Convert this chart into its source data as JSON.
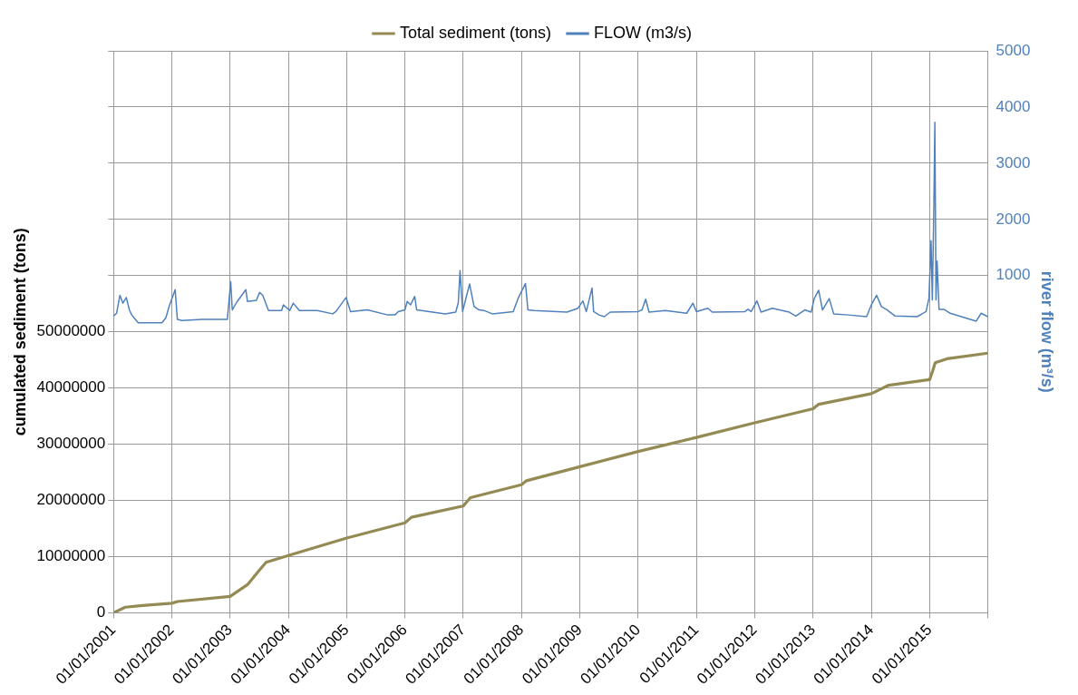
{
  "chart_data": {
    "type": "line",
    "ylabel": "cumulated sediment (tons)",
    "y2label": "river flow (m³/s)",
    "xlim": [
      "2001-01-01",
      "2016-01-01"
    ],
    "xticks": [
      {
        "value": "2001-01-01",
        "label": "01/01/2001"
      },
      {
        "value": "2002-01-01",
        "label": "01/01/2002"
      },
      {
        "value": "2003-01-01",
        "label": "01/01/2003"
      },
      {
        "value": "2004-01-01",
        "label": "01/01/2004"
      },
      {
        "value": "2005-01-01",
        "label": "01/01/2005"
      },
      {
        "value": "2006-01-01",
        "label": "01/01/2006"
      },
      {
        "value": "2007-01-01",
        "label": "01/01/2007"
      },
      {
        "value": "2008-01-01",
        "label": "01/01/2008"
      },
      {
        "value": "2009-01-01",
        "label": "01/01/2009"
      },
      {
        "value": "2010-01-01",
        "label": "01/01/2010"
      },
      {
        "value": "2011-01-01",
        "label": "01/01/2011"
      },
      {
        "value": "2012-01-01",
        "label": "01/01/2012"
      },
      {
        "value": "2013-01-01",
        "label": "01/01/2013"
      },
      {
        "value": "2014-01-01",
        "label": "01/01/2014"
      },
      {
        "value": "2015-01-01",
        "label": "01/01/2015"
      },
      {
        "value": "2016-01-01",
        "label": null
      }
    ],
    "ylim": [
      0,
      100000000
    ],
    "yticks": [
      0,
      10000000,
      20000000,
      30000000,
      40000000,
      50000000,
      {
        "value": 60000000,
        "label": null
      },
      {
        "value": 70000000,
        "label": null
      },
      {
        "value": 80000000,
        "label": null
      },
      {
        "value": 90000000,
        "label": null
      },
      {
        "value": 100000000,
        "label": null
      }
    ],
    "y2lim": [
      -5000,
      5000
    ],
    "y2ticks": [
      1000,
      2000,
      3000,
      4000,
      5000
    ],
    "grid": true,
    "legend": "top",
    "marker": "none",
    "series": [
      {
        "name": "Total sediment (tons)",
        "color": "#948a54",
        "x": [
          "2001-01-01",
          "2001-03-15",
          "2001-07-01",
          "2002-01-01",
          "2002-02-05",
          "2003-01-01",
          "2003-04-20",
          "2003-07-01",
          "2003-08-15",
          "2004-01-01",
          "2005-01-01",
          "2006-01-01",
          "2006-02-10",
          "2007-01-01",
          "2007-02-15",
          "2008-01-01",
          "2008-02-01",
          "2009-01-01",
          "2010-01-01",
          "2011-01-01",
          "2012-01-01",
          "2013-01-01",
          "2013-02-05",
          "2014-01-01",
          "2014-04-20",
          "2015-01-01",
          "2015-01-20",
          "2015-02-05",
          "2015-04-20",
          "2016-01-01"
        ],
        "values": [
          0,
          1000000,
          1300000,
          1700000,
          2000000,
          2900000,
          5000000,
          7500000,
          9000000,
          10200000,
          13300000,
          16000000,
          17000000,
          19000000,
          20500000,
          22800000,
          23500000,
          26000000,
          28700000,
          31200000,
          33800000,
          36300000,
          37100000,
          39000000,
          40500000,
          41500000,
          43000000,
          44500000,
          45200000,
          46200000
        ]
      },
      {
        "name": "FLOW (m3/s)",
        "color": "#4f81bd",
        "axis": "y2",
        "x": [
          "2001-01-01",
          "2001-01-20",
          "2001-02-10",
          "2001-02-28",
          "2001-03-22",
          "2001-04-10",
          "2001-04-25",
          "2001-05-15",
          "2001-06-05",
          "2001-10-31",
          "2001-11-25",
          "2001-12-15",
          "2002-01-22",
          "2002-02-05",
          "2002-03-05",
          "2002-07-12",
          "2002-12-15",
          "2003-01-05",
          "2003-01-15",
          "2003-02-10",
          "2003-04-10",
          "2003-04-20",
          "2003-06-15",
          "2003-07-05",
          "2003-07-25",
          "2003-08-30",
          "2003-11-20",
          "2003-12-01",
          "2004-01-10",
          "2004-02-01",
          "2004-03-10",
          "2004-07-01",
          "2004-10-05",
          "2004-10-25",
          "2004-12-28",
          "2005-01-25",
          "2005-05-10",
          "2005-09-15",
          "2005-10-30",
          "2005-11-20",
          "2006-01-01",
          "2006-01-15",
          "2006-02-05",
          "2006-03-03",
          "2006-03-15",
          "2006-04-15",
          "2006-09-10",
          "2006-11-15",
          "2006-12-01",
          "2006-12-12",
          "2006-12-28",
          "2007-01-20",
          "2007-02-10",
          "2007-03-10",
          "2007-04-10",
          "2007-05-10",
          "2007-07-02",
          "2007-11-10",
          "2007-12-10",
          "2008-01-26",
          "2008-02-10",
          "2008-03-20",
          "2008-10-12",
          "2008-12-20",
          "2009-01-20",
          "2009-02-10",
          "2009-03-18",
          "2009-03-28",
          "2009-05-01",
          "2009-06-03",
          "2009-07-10",
          "2010-01-01",
          "2010-01-25",
          "2010-02-17",
          "2010-03-10",
          "2010-06-20",
          "2010-11-01",
          "2010-12-10",
          "2011-01-01",
          "2011-03-14",
          "2011-04-10",
          "2011-11-01",
          "2011-11-20",
          "2011-12-10",
          "2012-01-15",
          "2012-02-10",
          "2012-04-20",
          "2012-08-05",
          "2012-09-15",
          "2012-11-10",
          "2012-12-20",
          "2013-01-08",
          "2013-02-05",
          "2013-03-01",
          "2013-04-12",
          "2013-05-10",
          "2013-08-10",
          "2013-12-02",
          "2014-01-01",
          "2014-02-03",
          "2014-03-05",
          "2014-04-10",
          "2014-05-30",
          "2014-10-15",
          "2014-12-10",
          "2014-12-28",
          "2015-01-10",
          "2015-01-18",
          "2015-01-28",
          "2015-02-03",
          "2015-02-10",
          "2015-02-17",
          "2015-03-01",
          "2015-04-01",
          "2015-05-10",
          "2015-10-20",
          "2015-11-20",
          "2015-12-31"
        ],
        "values": [
          280,
          330,
          650,
          510,
          610,
          390,
          300,
          230,
          160,
          160,
          250,
          450,
          750,
          220,
          200,
          220,
          220,
          890,
          390,
          520,
          750,
          540,
          560,
          700,
          650,
          380,
          380,
          480,
          380,
          510,
          380,
          380,
          320,
          360,
          610,
          360,
          390,
          300,
          300,
          360,
          390,
          540,
          480,
          630,
          390,
          380,
          320,
          350,
          520,
          1090,
          360,
          620,
          850,
          450,
          390,
          380,
          320,
          360,
          590,
          860,
          390,
          380,
          350,
          420,
          550,
          360,
          780,
          360,
          300,
          270,
          350,
          360,
          390,
          580,
          350,
          380,
          330,
          510,
          360,
          420,
          350,
          360,
          400,
          360,
          550,
          350,
          420,
          350,
          280,
          390,
          350,
          590,
          740,
          390,
          590,
          320,
          300,
          270,
          480,
          650,
          450,
          390,
          280,
          270,
          360,
          600,
          1620,
          570,
          2290,
          3730,
          570,
          1260,
          400,
          400,
          330,
          190,
          330,
          270
        ]
      }
    ]
  }
}
